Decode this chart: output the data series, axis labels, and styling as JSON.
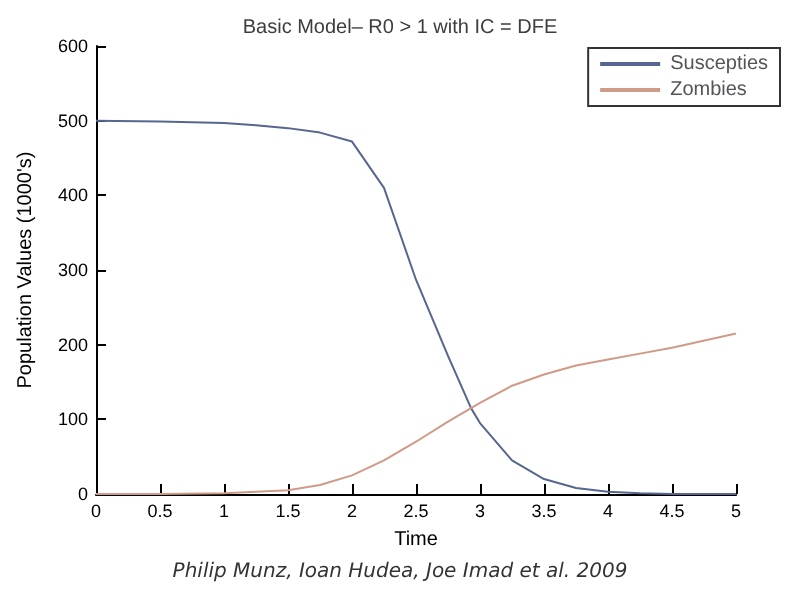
{
  "chart_data": {
    "type": "line",
    "title": "Basic Model– R0 > 1 with IC = DFE",
    "xlabel": "Time",
    "ylabel": "Population Values (1000's)",
    "x": [
      0,
      0.5,
      1,
      1.25,
      1.5,
      1.75,
      2,
      2.25,
      2.5,
      2.75,
      2.93,
      3,
      3.25,
      3.5,
      3.75,
      4,
      4.25,
      4.5,
      5
    ],
    "series": [
      {
        "name": "Suscepties",
        "color": "#56668f",
        "values": [
          500,
          499,
          497,
          494,
          490,
          484,
          472,
          410,
          287,
          185,
          115,
          95,
          45,
          20,
          8,
          3,
          1,
          0,
          0
        ]
      },
      {
        "name": "Zombies",
        "color": "#cf9a86",
        "values": [
          0,
          0,
          1,
          3,
          5,
          12,
          25,
          45,
          70,
          97,
          115,
          122,
          145,
          160,
          172,
          180,
          188,
          196,
          215
        ]
      }
    ],
    "xlim": [
      0,
      5
    ],
    "xticks": [
      0,
      0.5,
      1,
      1.5,
      2,
      2.5,
      3,
      3.5,
      4,
      4.5,
      5
    ],
    "ylim": [
      0,
      600
    ],
    "yticks": [
      0,
      100,
      200,
      300,
      400,
      500,
      600
    ],
    "grid": false,
    "legend": "top right",
    "marker": "none",
    "line_style": "solid",
    "annotations": [
      "Philip Munz, Ioan Hudea, Joe Imad et al. 2009"
    ]
  }
}
